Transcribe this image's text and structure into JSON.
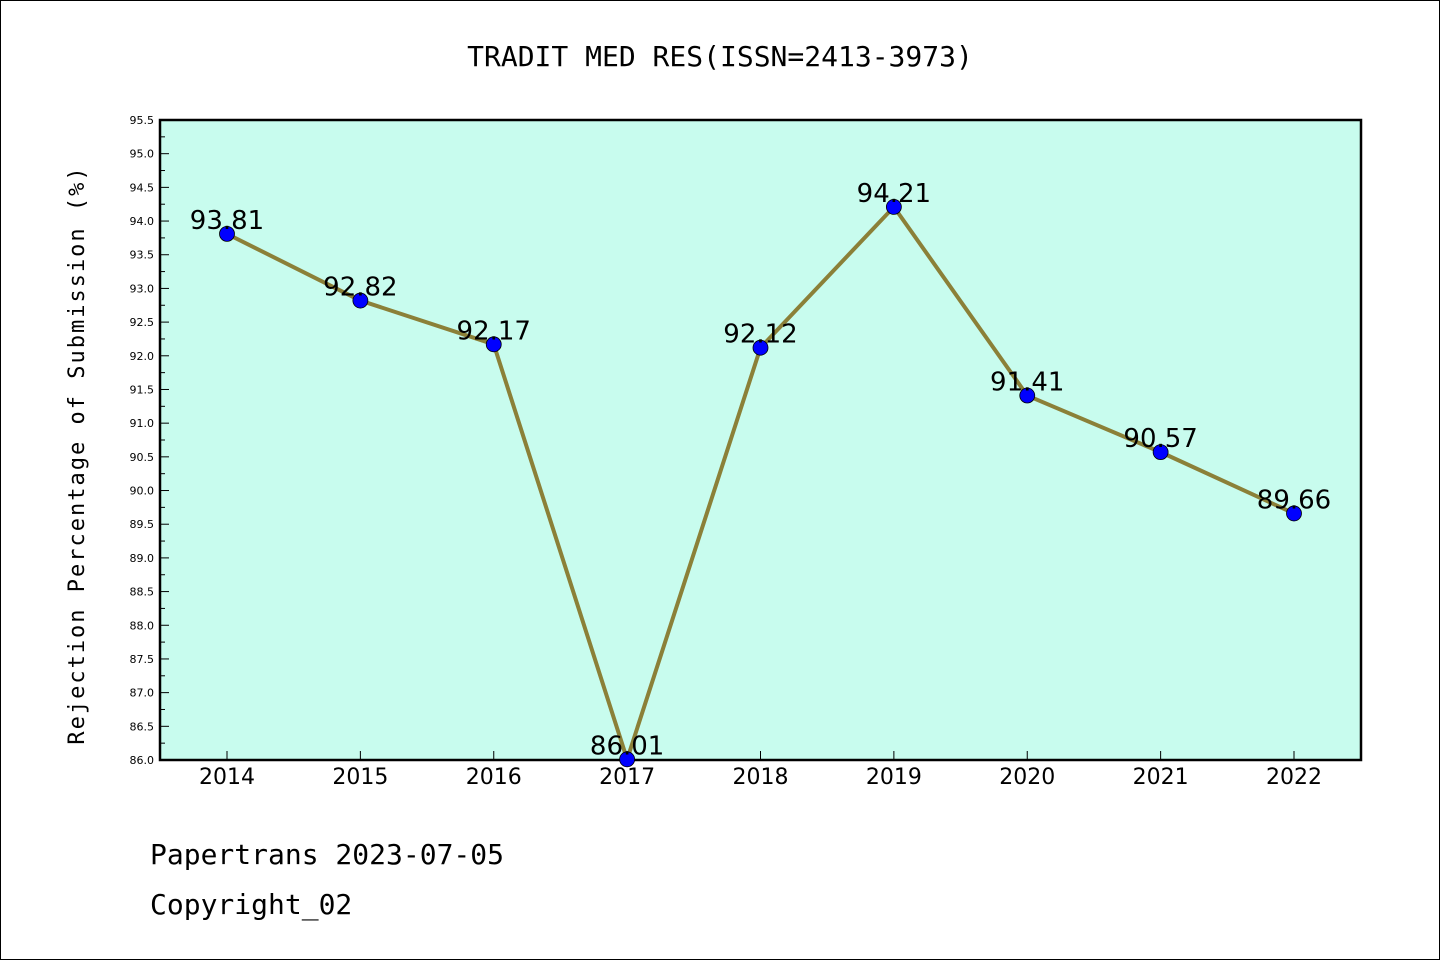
{
  "chart_data": {
    "type": "line",
    "title": "TRADIT MED RES(ISSN=2413-3973)",
    "ylabel": "Rejection Percentage of Submission (%)",
    "xlabel": "",
    "categories": [
      "2014",
      "2015",
      "2016",
      "2017",
      "2018",
      "2019",
      "2020",
      "2021",
      "2022"
    ],
    "values": [
      93.81,
      92.82,
      92.17,
      86.01,
      92.12,
      94.21,
      91.41,
      90.57,
      89.66
    ],
    "data_labels": [
      "93.81",
      "92.82",
      "92.17",
      "86.01",
      "92.12",
      "94.21",
      "91.41",
      "90.57",
      "89.66"
    ],
    "ylim": [
      86.0,
      95.5
    ],
    "yticks": [
      "86.0",
      "86.5",
      "87.0",
      "87.5",
      "88.0",
      "88.5",
      "89.0",
      "89.5",
      "90.0",
      "90.5",
      "91.0",
      "91.5",
      "92.0",
      "92.5",
      "93.0",
      "93.5",
      "94.0",
      "94.5",
      "95.0",
      "95.5"
    ],
    "grid": false,
    "colors": {
      "plot_background": "#c8fcee",
      "line": "#8b8038",
      "marker": "#0000ff"
    }
  },
  "footer": {
    "line1": "Papertrans 2023-07-05",
    "line2": "Copyright_02"
  }
}
